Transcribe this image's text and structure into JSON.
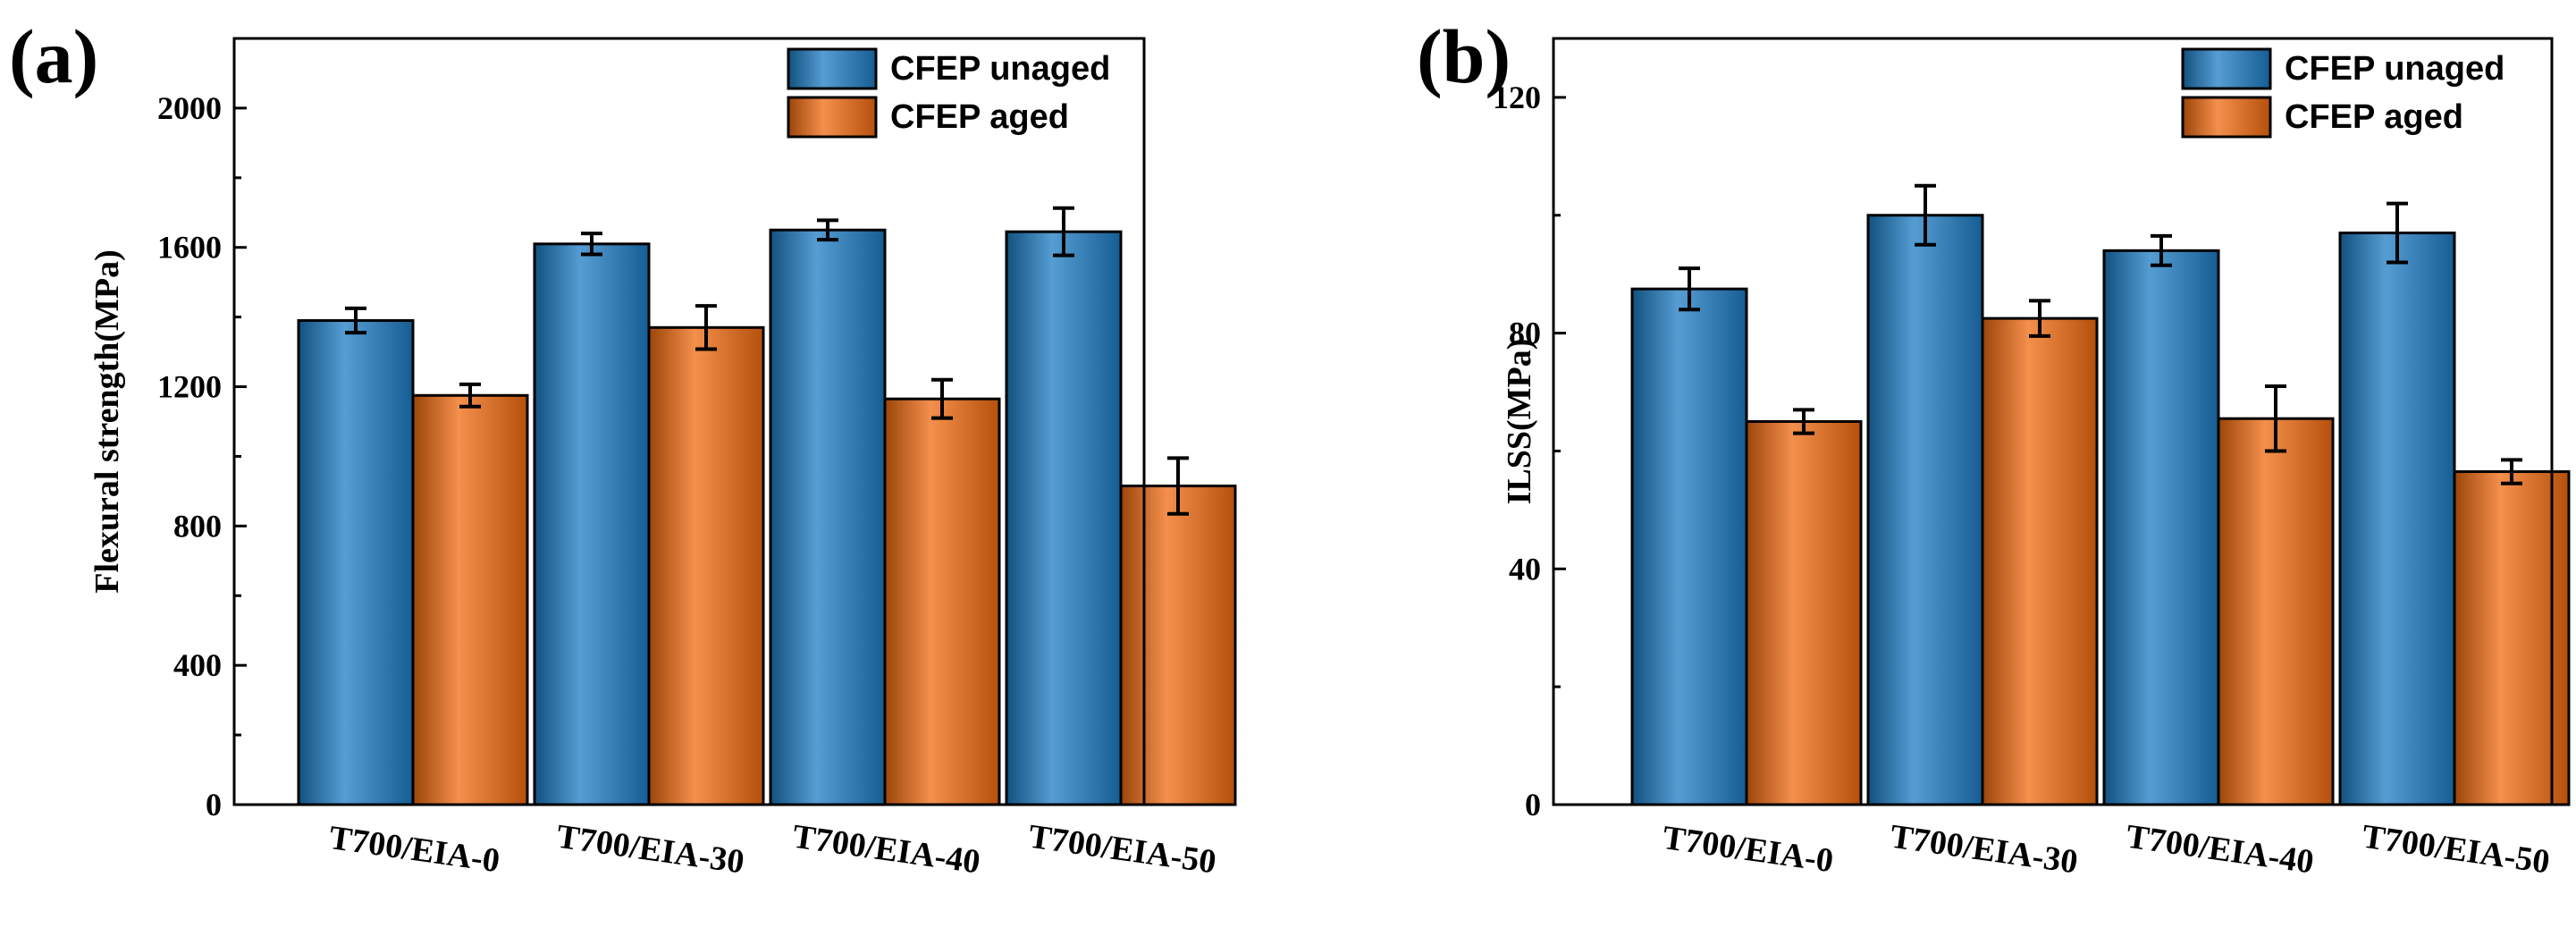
{
  "chart_data": [
    {
      "type": "bar",
      "panel_label": "(a)",
      "title": "",
      "xlabel": "",
      "ylabel": "Flexural strength(MPa)",
      "ylim": [
        0,
        2200
      ],
      "yticks": [
        0,
        400,
        800,
        1200,
        1600,
        2000
      ],
      "categories": [
        "T700/EIA-0",
        "T700/EIA-30",
        "T700/EIA-40",
        "T700/EIA-50"
      ],
      "series": [
        {
          "name": "CFEP unaged",
          "color": "#1c7cc4",
          "values": [
            1390,
            1610,
            1650,
            1645
          ],
          "errors": [
            35,
            30,
            28,
            68
          ]
        },
        {
          "name": "CFEP aged",
          "color": "#f06a10",
          "values": [
            1175,
            1370,
            1165,
            915
          ],
          "errors": [
            32,
            62,
            55,
            80
          ]
        }
      ],
      "legend": "top-right",
      "grid": false
    },
    {
      "type": "bar",
      "panel_label": "(b)",
      "title": "",
      "xlabel": "",
      "ylabel": "ILSS(MPa)",
      "ylim": [
        0,
        130
      ],
      "yticks": [
        0,
        40,
        80,
        120
      ],
      "categories": [
        "T700/EIA-0",
        "T700/EIA-30",
        "T700/EIA-40",
        "T700/EIA-50"
      ],
      "series": [
        {
          "name": "CFEP unaged",
          "color": "#1c7cc4",
          "values": [
            87.5,
            100,
            94,
            97
          ],
          "errors": [
            3.5,
            5,
            2.5,
            5
          ]
        },
        {
          "name": "CFEP aged",
          "color": "#f06a10",
          "values": [
            65,
            82.5,
            65.5,
            56.5
          ],
          "errors": [
            2,
            3,
            5.5,
            2
          ]
        }
      ],
      "legend": "top-right",
      "grid": false
    }
  ]
}
